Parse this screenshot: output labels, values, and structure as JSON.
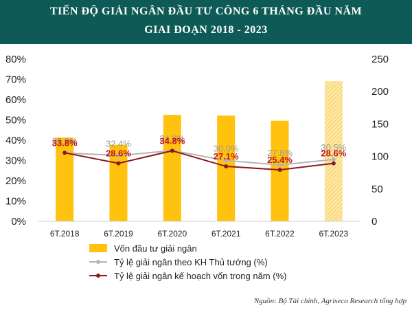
{
  "header": {
    "title_line1": "TIẾN ĐỘ GIẢI NGÂN ĐẦU TƯ CÔNG 6 THÁNG ĐẦU NĂM",
    "title_line2": "GIAI ĐOẠN 2018 - 2023",
    "background_color": "#0e5a56"
  },
  "source": "Nguồn: Bộ Tài chính, Agriseco Research tổng hợp",
  "chart_data": {
    "type": "bar",
    "categories": [
      "6T.2018",
      "6T.2019",
      "6T.2020",
      "6T.2021",
      "6T.2022",
      "6T.2023"
    ],
    "left_axis": {
      "ticks": [
        "0%",
        "10%",
        "20%",
        "30%",
        "40%",
        "50%",
        "60%",
        "70%",
        "80%"
      ],
      "ylim": [
        0,
        80
      ]
    },
    "right_axis": {
      "ticks": [
        "0",
        "50",
        "100",
        "150",
        "200",
        "250"
      ],
      "ylim": [
        0,
        250
      ]
    },
    "grid": false,
    "legend_position": "bottom-left",
    "series": [
      {
        "name": "Vốn đầu tư giải ngân",
        "type": "bar",
        "axis": "right",
        "color": "#ffc20e",
        "values": [
          129,
          118,
          164,
          163,
          155,
          216
        ],
        "hatched_last": true
      },
      {
        "name": "Tỷ lệ giải ngân theo KH Thủ tướng (%)",
        "type": "line",
        "axis": "left",
        "color": "#b4b4b4",
        "label_color": "#9a9a9a",
        "values": [
          33.8,
          32.4,
          34.9,
          30.0,
          27.8,
          30.5
        ],
        "labels": [
          "33.8%",
          "32.4%",
          "34.9%",
          "30.0%",
          "27.8%",
          "30.5%"
        ]
      },
      {
        "name": "Tỷ lệ giải ngân kế hoạch vốn trong năm (%)",
        "type": "line",
        "axis": "left",
        "color": "#8b1a1a",
        "label_color": "#c0161c",
        "values": [
          33.8,
          28.6,
          34.8,
          27.1,
          25.4,
          28.6
        ],
        "plot_values": [
          33.8,
          28.6,
          34.8,
          27.1,
          25.4,
          28.6
        ],
        "labels": [
          "33.8%",
          "28.6%",
          "34.8%",
          "27.1%",
          "25.4%",
          "28.6%"
        ]
      }
    ]
  }
}
